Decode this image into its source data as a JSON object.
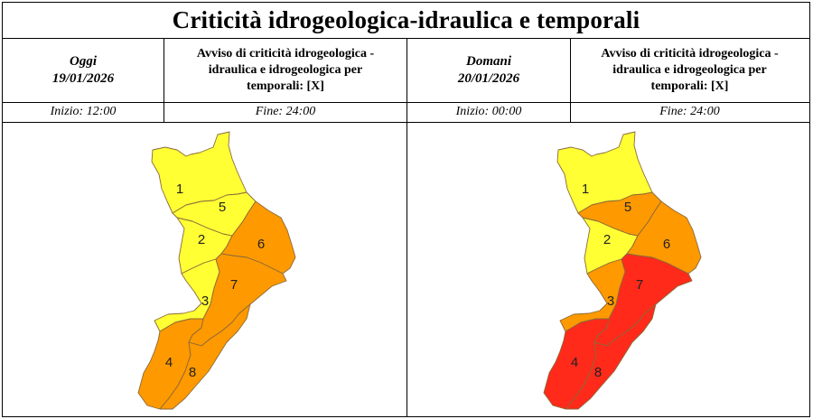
{
  "title": "Criticità idrogeologica-idraulica e temporali",
  "today": {
    "label": "Oggi",
    "date": "19/01/2026",
    "warning_lines": [
      "Avviso di criticità idrogeologica -",
      "idraulica e idrogeologica per",
      "temporali: [X]"
    ],
    "start": "Inizio: 12:00",
    "end": "Fine: 24:00",
    "zones": [
      {
        "id": "1",
        "color": "#ffff33"
      },
      {
        "id": "2",
        "color": "#ffff33"
      },
      {
        "id": "3",
        "color": "#ffff33"
      },
      {
        "id": "4",
        "color": "#ff9900"
      },
      {
        "id": "5",
        "color": "#ffff33"
      },
      {
        "id": "6",
        "color": "#ff9900"
      },
      {
        "id": "7",
        "color": "#ff9900"
      },
      {
        "id": "8",
        "color": "#ff9900"
      }
    ]
  },
  "tomorrow": {
    "label": "Domani",
    "date": "20/01/2026",
    "warning_lines": [
      "Avviso di criticità idrogeologica -",
      "idraulica e idrogeologica per",
      "temporali: [X]"
    ],
    "start": "Inizio: 00:00",
    "end": "Fine: 24:00",
    "zones": [
      {
        "id": "1",
        "color": "#ffff33"
      },
      {
        "id": "2",
        "color": "#ffff33"
      },
      {
        "id": "3",
        "color": "#ff9900"
      },
      {
        "id": "4",
        "color": "#ff2a1a"
      },
      {
        "id": "5",
        "color": "#ff9900"
      },
      {
        "id": "6",
        "color": "#ff9900"
      },
      {
        "id": "7",
        "color": "#ff2a1a"
      },
      {
        "id": "8",
        "color": "#ff2a1a"
      }
    ]
  }
}
